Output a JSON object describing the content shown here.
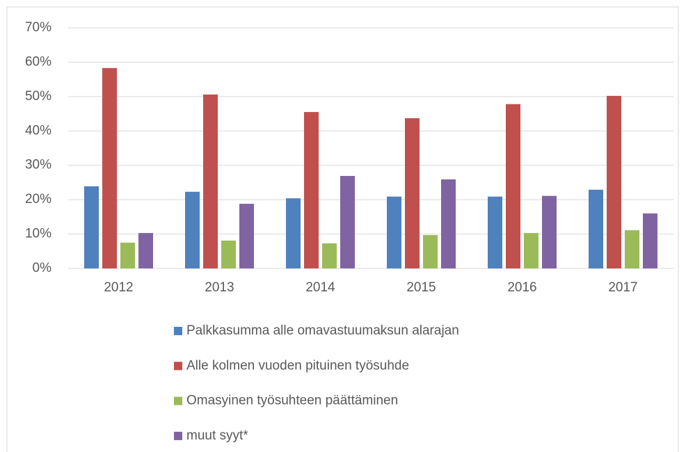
{
  "chart_data": {
    "type": "bar",
    "categories": [
      "2012",
      "2013",
      "2014",
      "2015",
      "2016",
      "2017"
    ],
    "series": [
      {
        "name": "Palkkasumma alle omavastuumaksun alarajan",
        "color": "#4f81bd",
        "values": [
          23.9,
          22.3,
          20.4,
          20.9,
          20.9,
          22.9
        ]
      },
      {
        "name": "Alle kolmen vuoden pituinen työsuhde",
        "color": "#c0504d",
        "values": [
          58.3,
          50.6,
          45.5,
          43.7,
          47.8,
          50.2
        ]
      },
      {
        "name": "Omasyinen työsuhteen päättäminen",
        "color": "#9bbb59",
        "values": [
          7.5,
          8.1,
          7.3,
          9.7,
          10.3,
          11.1
        ]
      },
      {
        "name": "muut syyt*",
        "color": "#8064a2",
        "values": [
          10.3,
          18.8,
          26.9,
          25.9,
          21.1,
          16.0
        ]
      }
    ],
    "ylim": [
      0,
      70
    ],
    "yticks": [
      {
        "value": 0,
        "label": "0%"
      },
      {
        "value": 10,
        "label": "10%"
      },
      {
        "value": 20,
        "label": "20%"
      },
      {
        "value": 30,
        "label": "30%"
      },
      {
        "value": 40,
        "label": "40%"
      },
      {
        "value": 50,
        "label": "50%"
      },
      {
        "value": 60,
        "label": "60%"
      },
      {
        "value": 70,
        "label": "70%"
      }
    ],
    "grid": true,
    "legend": "bottom"
  }
}
